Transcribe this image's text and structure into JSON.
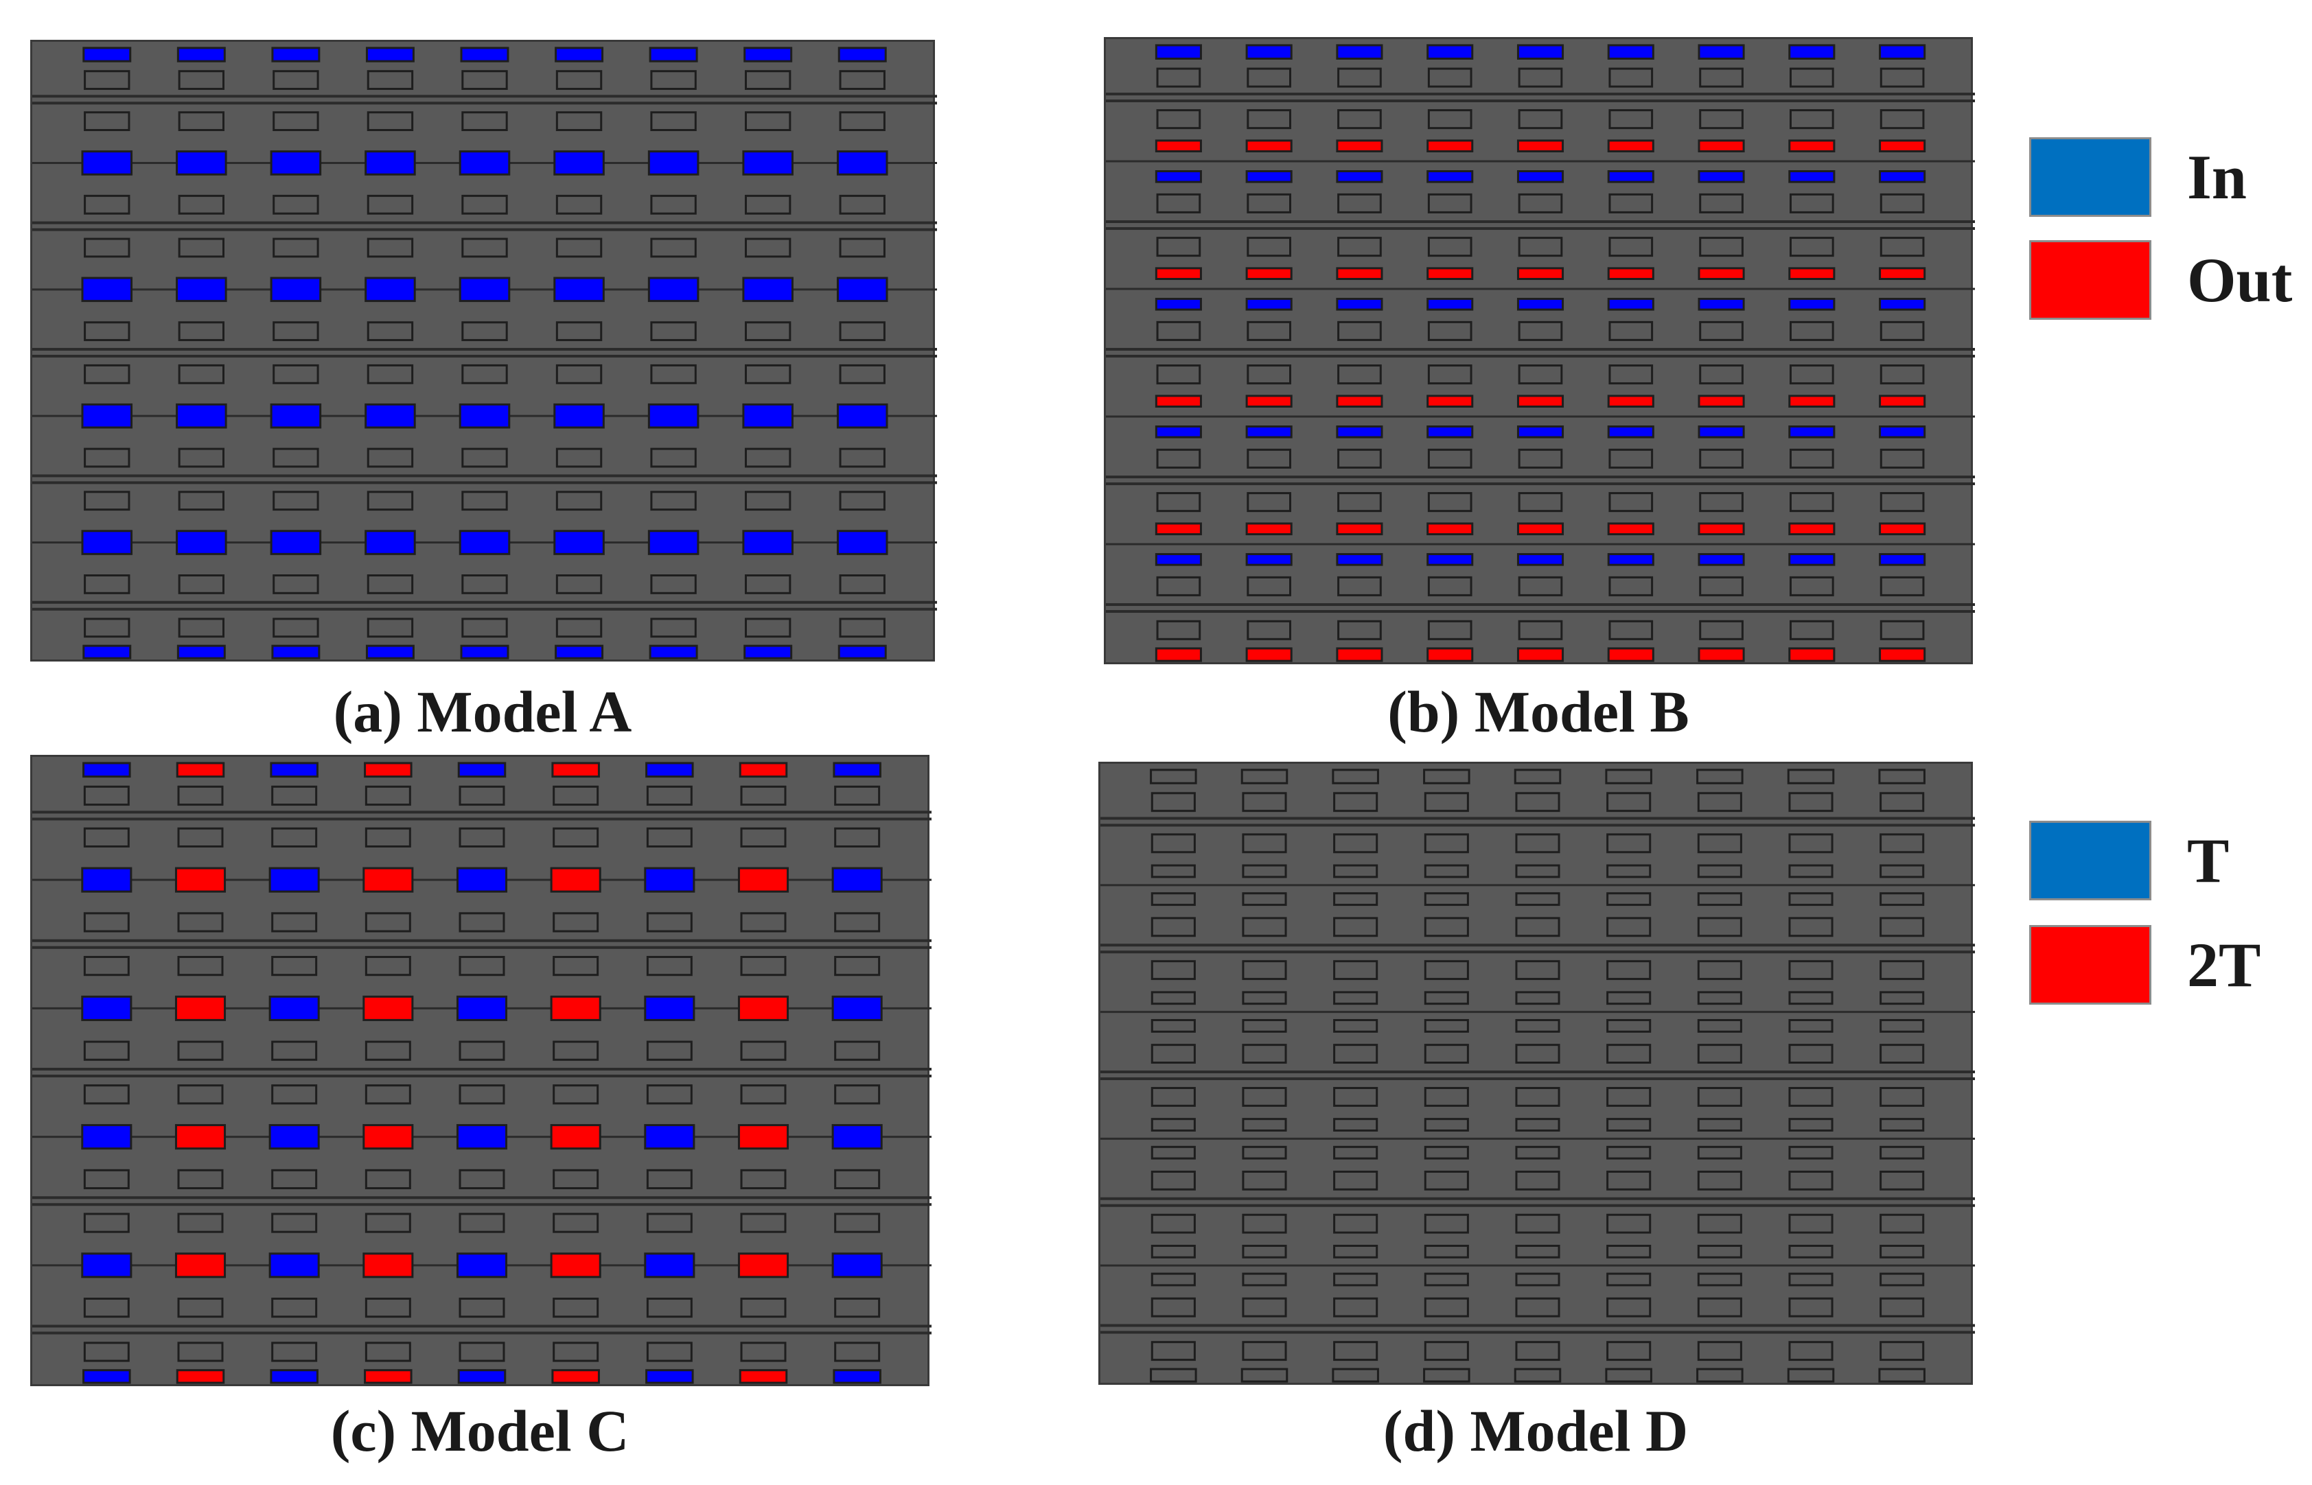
{
  "colors": {
    "blue": "#0000ff",
    "red": "#ff0000",
    "panel": "#595959",
    "outline": "#1e1e1e",
    "legend_blue": "#0070c0",
    "legend_red": "#ff0000"
  },
  "panels": [
    {
      "id": "a",
      "caption": "(a) Model A",
      "rows": 4,
      "pattern": "blue-only"
    },
    {
      "id": "b",
      "caption": "(b) Model B",
      "rows": 4,
      "pattern": "red-over-blue"
    },
    {
      "id": "c",
      "caption": "(c) Model C",
      "rows": 4,
      "pattern": "alternating"
    },
    {
      "id": "d",
      "caption": "(d) Model D",
      "rows": 4,
      "pattern": "none"
    }
  ],
  "legend_top": {
    "items": [
      {
        "label": "In",
        "color": "blue"
      },
      {
        "label": "Out",
        "color": "red"
      }
    ]
  },
  "legend_bottom": {
    "items": [
      {
        "label": "T",
        "color": "blue"
      },
      {
        "label": "2T",
        "color": "red"
      }
    ]
  }
}
